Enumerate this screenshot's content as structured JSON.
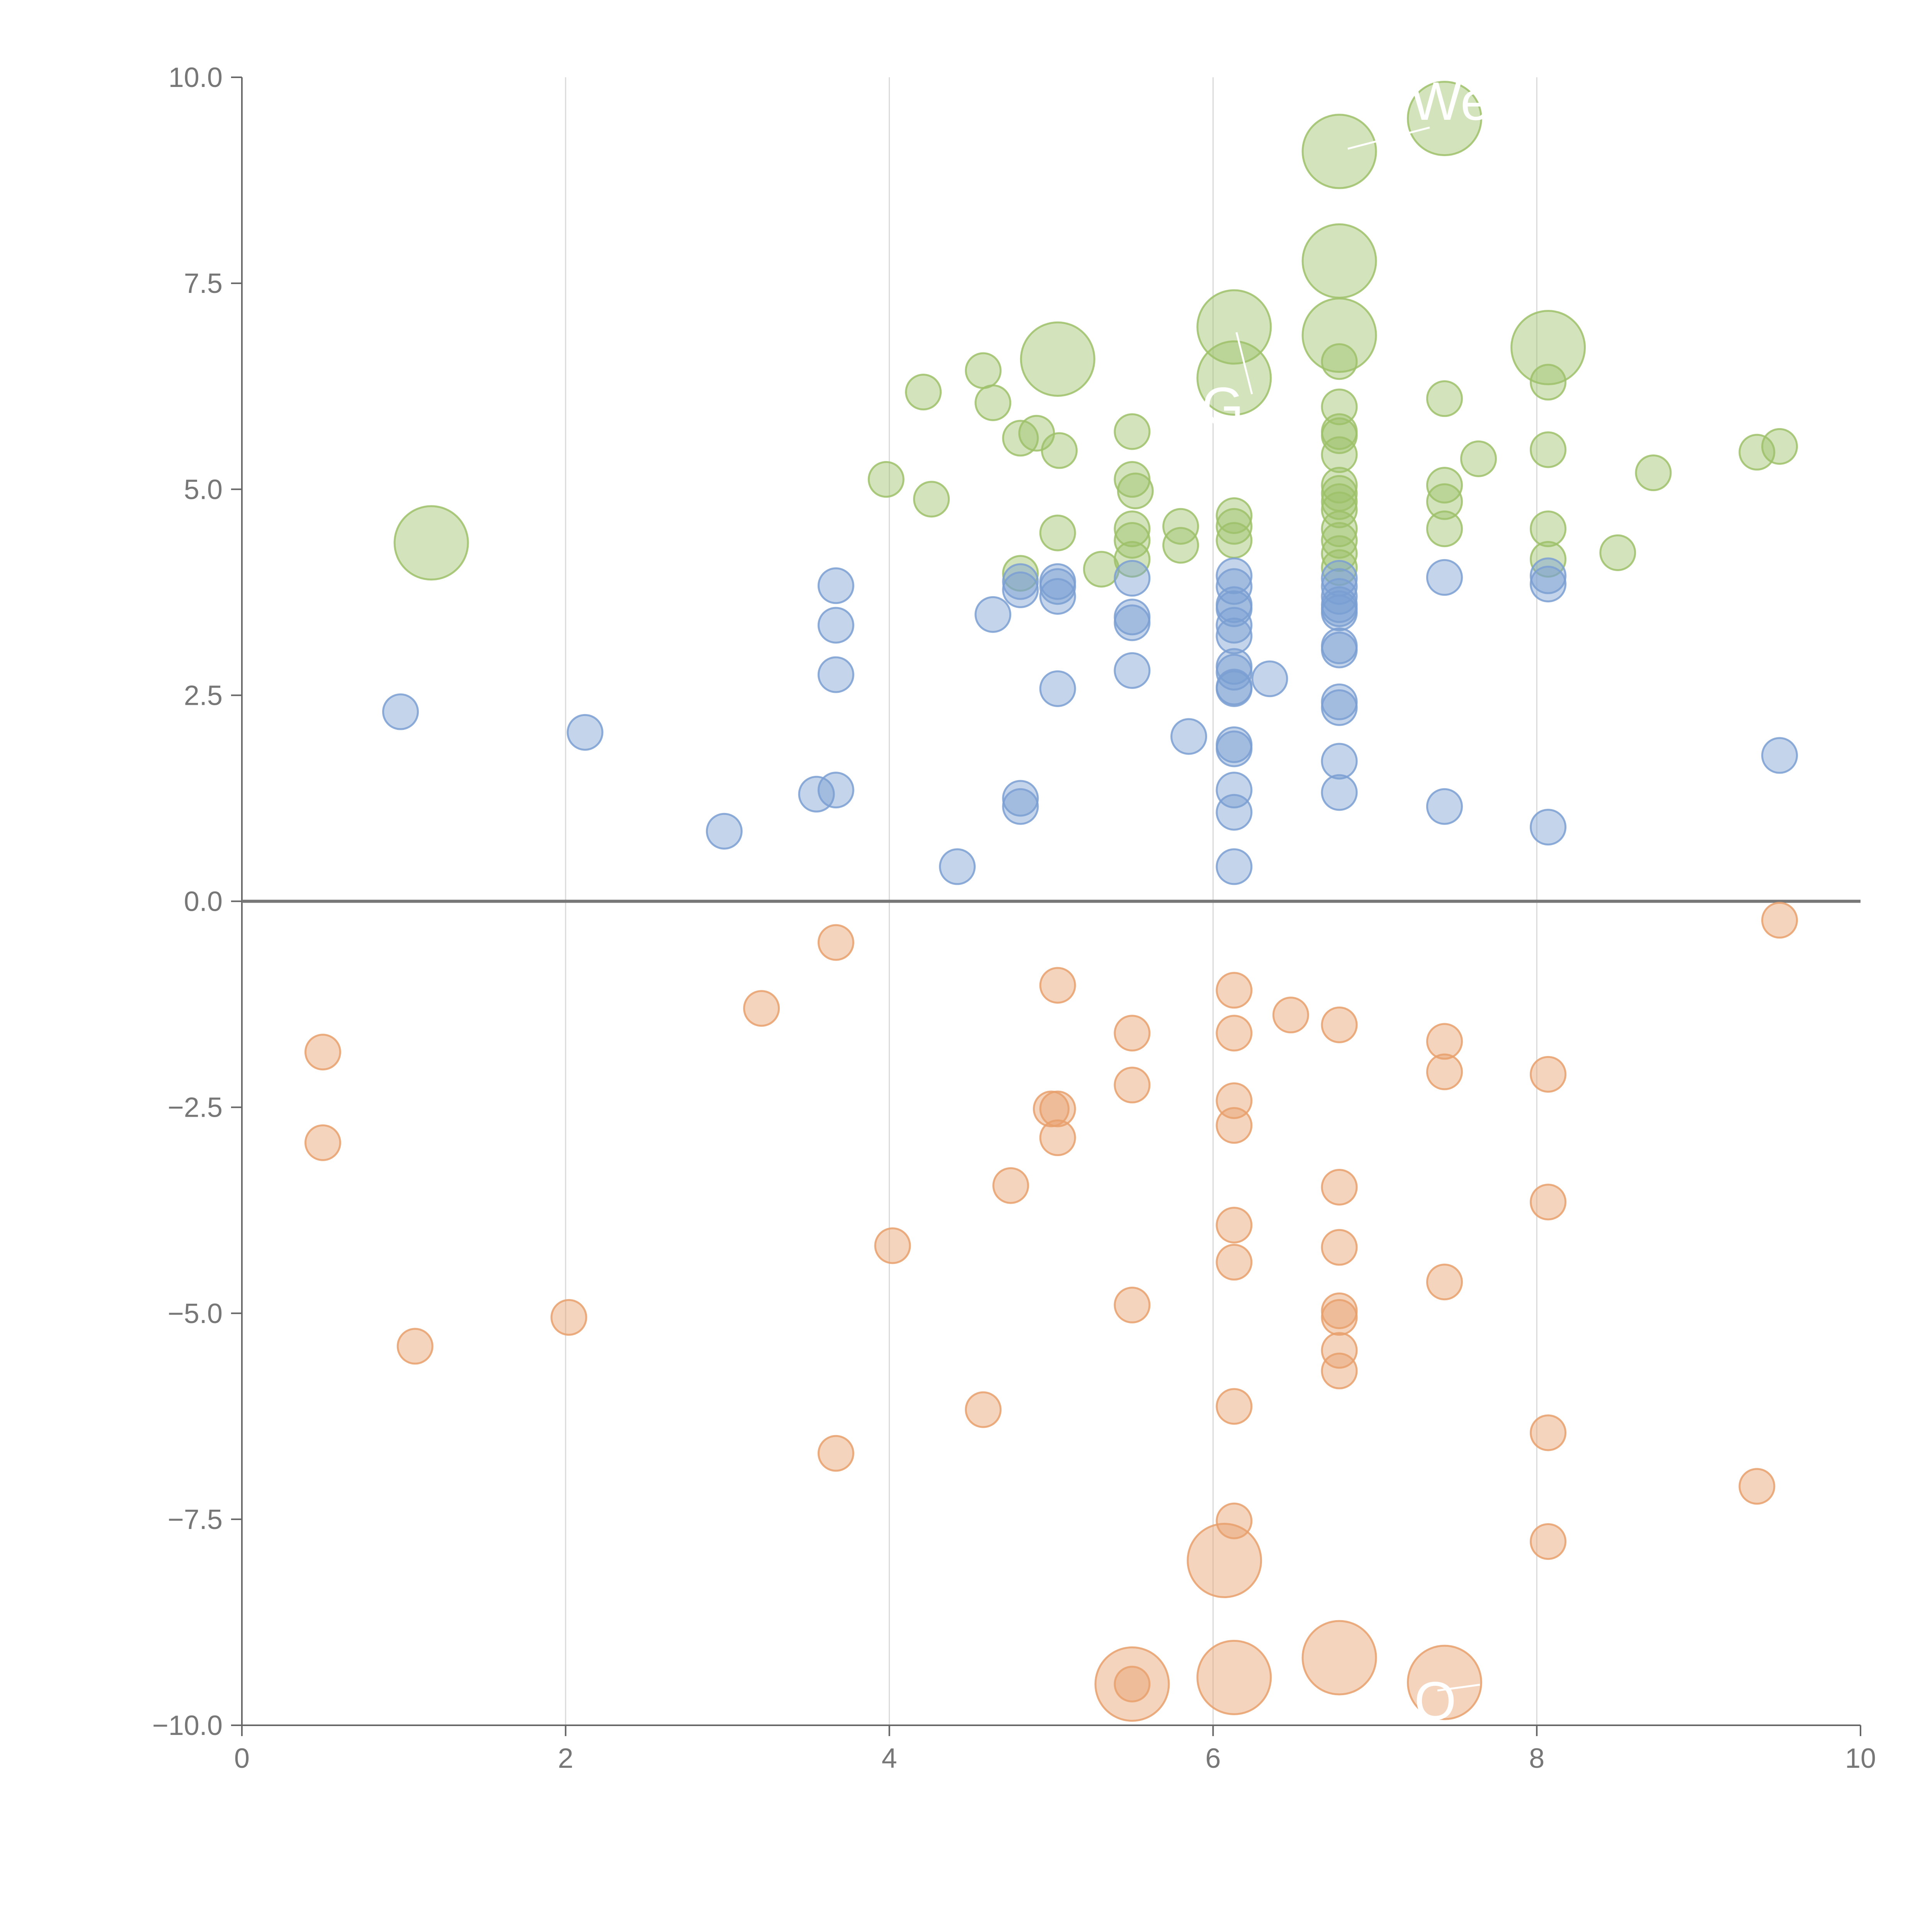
{
  "chart_data": {
    "type": "scatter",
    "title": "",
    "xlabel": "",
    "ylabel": "",
    "xlim": [
      0,
      10
    ],
    "ylim": [
      -10,
      10
    ],
    "x_ticks": [
      "0",
      "2",
      "4",
      "6",
      "8",
      "10"
    ],
    "y_ticks": [
      "10.0",
      "7.5",
      "5.0",
      "2.5",
      "0.0",
      "−2.5",
      "−5.0",
      "−7.5",
      "−10.0"
    ],
    "x_tick_values": [
      0,
      2,
      4,
      6,
      8,
      10
    ],
    "y_tick_values": [
      10,
      7.5,
      5,
      2.5,
      0,
      -2.5,
      -5,
      -7.5,
      -10
    ],
    "grid": "vertical lines only",
    "reference_line_y": 0,
    "series": [
      {
        "color": "#9ec16a",
        "points": [
          [
            1.17,
            4.35,
            2
          ],
          [
            3.98,
            5.12,
            1
          ],
          [
            4.26,
            4.88,
            1
          ],
          [
            4.21,
            6.18,
            1
          ],
          [
            4.58,
            6.44,
            1
          ],
          [
            4.64,
            6.05,
            1
          ],
          [
            4.81,
            5.62,
            1
          ],
          [
            4.91,
            5.68,
            1
          ],
          [
            5.05,
            5.47,
            1
          ],
          [
            5.04,
            6.58,
            2
          ],
          [
            5.04,
            4.47,
            1
          ],
          [
            4.81,
            3.98,
            1
          ],
          [
            5.31,
            4.03,
            1
          ],
          [
            5.5,
            4.52,
            1
          ],
          [
            5.5,
            4.38,
            1
          ],
          [
            5.5,
            4.15,
            1
          ],
          [
            5.5,
            5.12,
            1
          ],
          [
            5.52,
            4.98,
            1
          ],
          [
            5.5,
            5.7,
            1
          ],
          [
            5.8,
            4.55,
            1
          ],
          [
            5.8,
            4.32,
            1
          ],
          [
            6.13,
            4.68,
            1
          ],
          [
            6.13,
            4.55,
            1
          ],
          [
            6.13,
            4.38,
            1
          ],
          [
            6.13,
            6.97,
            2
          ],
          [
            6.13,
            6.35,
            2
          ],
          [
            6.78,
            9.1,
            2
          ],
          [
            6.78,
            7.77,
            2
          ],
          [
            6.78,
            6.87,
            2
          ],
          [
            6.78,
            6.55,
            1
          ],
          [
            6.78,
            6.0,
            1
          ],
          [
            6.78,
            5.7,
            1
          ],
          [
            6.78,
            5.65,
            1
          ],
          [
            6.78,
            5.42,
            1
          ],
          [
            6.78,
            5.05,
            1
          ],
          [
            6.78,
            4.95,
            1
          ],
          [
            6.78,
            4.85,
            1
          ],
          [
            6.78,
            4.75,
            1
          ],
          [
            6.78,
            4.52,
            1
          ],
          [
            6.78,
            4.38,
            1
          ],
          [
            6.78,
            4.22,
            1
          ],
          [
            6.78,
            4.05,
            1
          ],
          [
            7.43,
            9.5,
            2
          ],
          [
            7.43,
            6.1,
            1
          ],
          [
            7.43,
            5.05,
            1
          ],
          [
            7.43,
            4.85,
            1
          ],
          [
            7.43,
            4.52,
            1
          ],
          [
            7.64,
            5.37,
            1
          ],
          [
            8.07,
            6.72,
            2
          ],
          [
            8.07,
            6.3,
            1
          ],
          [
            8.07,
            5.48,
            1
          ],
          [
            8.07,
            4.52,
            1
          ],
          [
            8.07,
            4.15,
            1
          ],
          [
            8.5,
            4.23,
            1
          ],
          [
            8.72,
            5.2,
            1
          ],
          [
            9.36,
            5.45,
            1
          ],
          [
            9.5,
            5.52,
            1
          ]
        ]
      },
      {
        "color": "#7b9fd2",
        "points": [
          [
            0.98,
            2.3,
            1
          ],
          [
            2.12,
            2.05,
            1
          ],
          [
            2.98,
            0.85,
            1
          ],
          [
            3.55,
            1.3,
            1
          ],
          [
            3.67,
            1.35,
            1
          ],
          [
            3.67,
            2.75,
            1
          ],
          [
            3.67,
            3.35,
            1
          ],
          [
            3.67,
            3.83,
            1
          ],
          [
            4.42,
            0.42,
            1
          ],
          [
            4.64,
            3.48,
            1
          ],
          [
            4.81,
            3.78,
            1
          ],
          [
            4.81,
            3.88,
            1
          ],
          [
            4.81,
            1.25,
            1
          ],
          [
            4.81,
            1.15,
            1
          ],
          [
            5.04,
            3.88,
            1
          ],
          [
            5.04,
            3.82,
            1
          ],
          [
            5.04,
            3.7,
            1
          ],
          [
            5.04,
            2.58,
            1
          ],
          [
            5.5,
            3.92,
            1
          ],
          [
            5.5,
            3.45,
            1
          ],
          [
            5.5,
            3.38,
            1
          ],
          [
            5.5,
            2.8,
            1
          ],
          [
            5.85,
            2.0,
            1
          ],
          [
            6.13,
            3.95,
            1
          ],
          [
            6.13,
            3.82,
            1
          ],
          [
            6.13,
            3.6,
            1
          ],
          [
            6.13,
            3.55,
            1
          ],
          [
            6.13,
            3.35,
            1
          ],
          [
            6.13,
            3.22,
            1
          ],
          [
            6.13,
            2.85,
            1
          ],
          [
            6.13,
            2.78,
            1
          ],
          [
            6.13,
            2.6,
            1
          ],
          [
            6.13,
            2.58,
            1
          ],
          [
            6.13,
            1.9,
            1
          ],
          [
            6.13,
            1.85,
            1
          ],
          [
            6.13,
            1.35,
            1
          ],
          [
            6.13,
            1.08,
            1
          ],
          [
            6.13,
            0.42,
            1
          ],
          [
            6.35,
            2.7,
            1
          ],
          [
            6.78,
            3.92,
            1
          ],
          [
            6.78,
            3.82,
            1
          ],
          [
            6.78,
            3.7,
            1
          ],
          [
            6.78,
            3.6,
            1
          ],
          [
            6.78,
            3.55,
            1
          ],
          [
            6.78,
            3.5,
            1
          ],
          [
            6.78,
            3.1,
            1
          ],
          [
            6.78,
            3.05,
            1
          ],
          [
            6.78,
            2.42,
            1
          ],
          [
            6.78,
            2.35,
            1
          ],
          [
            6.78,
            1.7,
            1
          ],
          [
            6.78,
            1.32,
            1
          ],
          [
            7.43,
            3.93,
            1
          ],
          [
            7.43,
            1.15,
            1
          ],
          [
            8.07,
            3.95,
            1
          ],
          [
            8.07,
            3.85,
            1
          ],
          [
            8.07,
            0.9,
            1
          ],
          [
            9.5,
            1.77,
            1
          ]
        ]
      },
      {
        "color": "#e8a06c",
        "points": [
          [
            0.5,
            -1.83,
            1
          ],
          [
            0.5,
            -2.93,
            1
          ],
          [
            1.07,
            -5.4,
            1
          ],
          [
            2.02,
            -5.05,
            1
          ],
          [
            3.21,
            -1.3,
            1
          ],
          [
            3.67,
            -0.5,
            1
          ],
          [
            3.67,
            -6.7,
            1
          ],
          [
            4.02,
            -4.18,
            1
          ],
          [
            4.58,
            -6.17,
            1
          ],
          [
            4.75,
            -3.45,
            1
          ],
          [
            5.04,
            -1.02,
            1
          ],
          [
            5.04,
            -2.52,
            1
          ],
          [
            5.0,
            -2.52,
            1
          ],
          [
            5.04,
            -2.87,
            1
          ],
          [
            5.5,
            -1.6,
            1
          ],
          [
            5.5,
            -2.23,
            1
          ],
          [
            5.5,
            -4.9,
            1
          ],
          [
            5.5,
            -9.5,
            2
          ],
          [
            5.5,
            -9.5,
            1
          ],
          [
            6.07,
            -8.0,
            2
          ],
          [
            6.13,
            -1.08,
            1
          ],
          [
            6.13,
            -1.6,
            1
          ],
          [
            6.13,
            -2.42,
            1
          ],
          [
            6.13,
            -2.72,
            1
          ],
          [
            6.13,
            -3.93,
            1
          ],
          [
            6.13,
            -4.38,
            1
          ],
          [
            6.13,
            -6.13,
            1
          ],
          [
            6.13,
            -7.52,
            1
          ],
          [
            6.13,
            -9.42,
            2
          ],
          [
            6.48,
            -1.38,
            1
          ],
          [
            6.78,
            -1.5,
            1
          ],
          [
            6.78,
            -3.47,
            1
          ],
          [
            6.78,
            -4.2,
            1
          ],
          [
            6.78,
            -4.97,
            1
          ],
          [
            6.78,
            -5.05,
            1
          ],
          [
            6.78,
            -5.45,
            1
          ],
          [
            6.78,
            -5.7,
            1
          ],
          [
            6.78,
            -9.18,
            2
          ],
          [
            7.43,
            -1.7,
            1
          ],
          [
            7.43,
            -2.07,
            1
          ],
          [
            7.43,
            -4.62,
            1
          ],
          [
            7.43,
            -9.48,
            2
          ],
          [
            8.07,
            -2.1,
            1
          ],
          [
            8.07,
            -3.65,
            1
          ],
          [
            8.07,
            -6.45,
            1
          ],
          [
            8.07,
            -7.77,
            1
          ],
          [
            9.36,
            -7.1,
            1
          ],
          [
            9.5,
            -0.23,
            1
          ]
        ]
      }
    ],
    "annotations": [
      "We",
      "G",
      "O"
    ]
  }
}
